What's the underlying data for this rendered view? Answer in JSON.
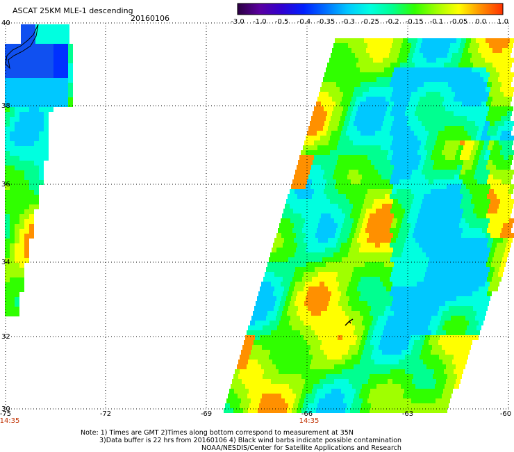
{
  "header": {
    "title": "ASCAT 25KM MLE-1 descending",
    "date": "20160106"
  },
  "colorbar": {
    "ticks": [
      "-3.0",
      "-1.0",
      "-0.5",
      "-0.4",
      "-0.35",
      "-0.3",
      "-0.25",
      "-0.2",
      "-0.15",
      "-0.1",
      "-0.05",
      "0.0",
      "1.0"
    ],
    "colors": [
      "#2a0040",
      "#5a00a0",
      "#3000d0",
      "#0020ff",
      "#0070ff",
      "#00c8ff",
      "#00ffe0",
      "#00ff90",
      "#30ff00",
      "#a0ff00",
      "#ffff00",
      "#ff9000",
      "#ff3000"
    ]
  },
  "axes": {
    "lat_labels": [
      "40",
      "38",
      "36",
      "34",
      "32",
      "30"
    ],
    "lon_labels": [
      "-75",
      "-72",
      "-69",
      "-66",
      "-63",
      "-60"
    ],
    "time_labels": [
      "14:35",
      "14:35"
    ]
  },
  "notes": {
    "line1": "Note: 1) Times are GMT 2)Times along bottom correspond to measurement at 35N",
    "line2": "3)Data buffer is 22 hrs from 20160106 4) Black wind barbs indicate possible contamination",
    "line3": "NOAA/NESDIS/Center for Satellite Applications and Research"
  }
}
